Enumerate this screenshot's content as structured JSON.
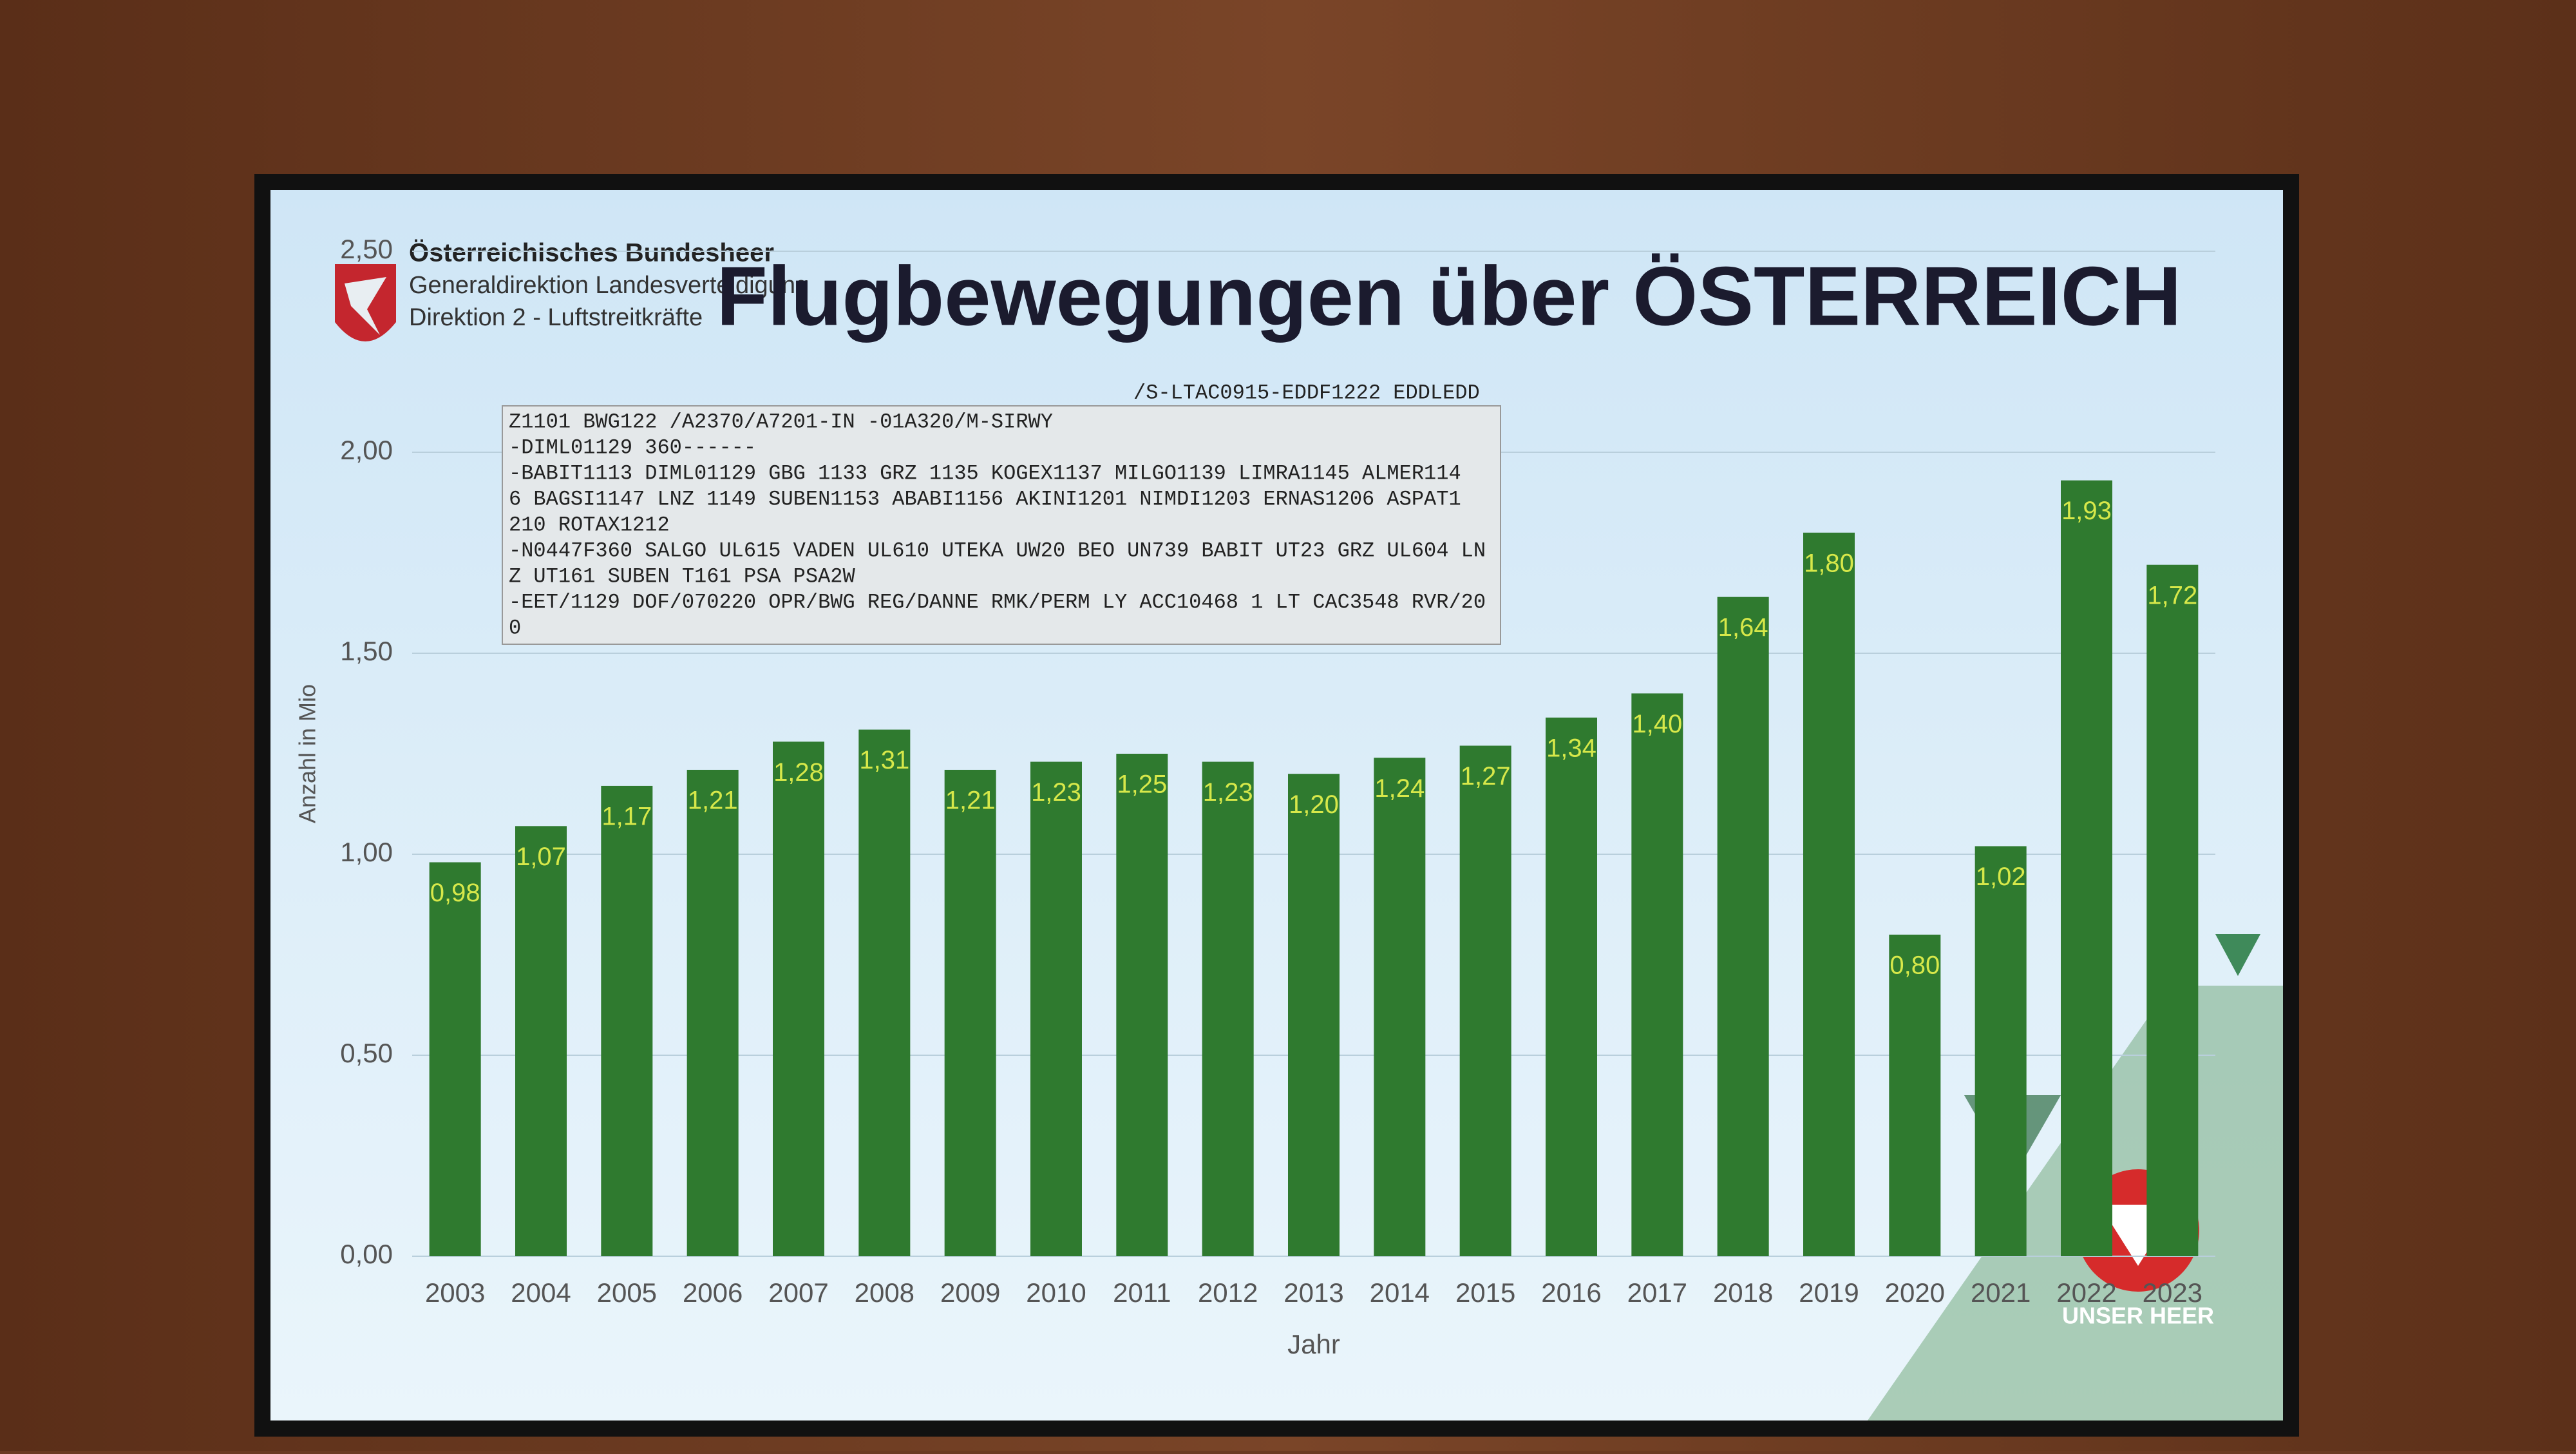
{
  "chart_data": {
    "type": "bar",
    "title": "Flugbewegungen über ÖSTERREICH",
    "x_label": "Jahr",
    "y_label": "Anzahl in Mio",
    "categories": [
      "2003",
      "2004",
      "2005",
      "2006",
      "2007",
      "2008",
      "2009",
      "2010",
      "2011",
      "2012",
      "2013",
      "2014",
      "2015",
      "2016",
      "2017",
      "2018",
      "2019",
      "2020",
      "2021",
      "2022",
      "2023"
    ],
    "values": [
      0.98,
      1.07,
      1.17,
      1.21,
      1.28,
      1.31,
      1.21,
      1.23,
      1.25,
      1.23,
      1.2,
      1.24,
      1.27,
      1.34,
      1.4,
      1.64,
      1.8,
      0.8,
      1.02,
      1.93,
      1.72
    ],
    "value_labels": [
      "0,98",
      "1,07",
      "1,17",
      "1,21",
      "1,28",
      "1,31",
      "1,21",
      "1,23",
      "1,25",
      "1,23",
      "1,20",
      "1,24",
      "1,27",
      "1,34",
      "1,40",
      "1,64",
      "1,80",
      "0,80",
      "1,02",
      "1,93",
      "1,72"
    ],
    "color": "#2f7a2f",
    "label_color": "#d7e84a",
    "ylim": [
      0,
      2.5
    ],
    "yticks": [
      {
        "value": 0,
        "label": "0,00"
      },
      {
        "value": 0.5,
        "label": "0,50"
      },
      {
        "value": 1,
        "label": "1,00"
      },
      {
        "value": 1.5,
        "label": "1,50"
      },
      {
        "value": 2,
        "label": "2,00"
      },
      {
        "value": 2.5,
        "label": "2,50"
      }
    ],
    "grid": true
  },
  "header": {
    "org": "Österreichisches Bundesheer",
    "line2": "Generaldirektion Landesverteidigung",
    "line3": "Direktion 2 - Luftstreitkräfte"
  },
  "flight_plan": {
    "header": "/S-LTAC0915-EDDF1222 EDDLEDD",
    "lines": [
      "Z1101 BWG122 /A2370/A7201-IN -01A320/M-SIRWY",
      "-DIML01129 360------",
      "-BABIT1113 DIML01129 GBG  1133 GRZ  1135 KOGEX1137 MILGO1139 LIMRA1145 ALMER114",
      "6 BAGSI1147 LNZ  1149 SUBEN1153 ABABI1156 AKINI1201 NIMDI1203 ERNAS1206 ASPAT1",
      "210 ROTAX1212",
      "-N0447F360 SALGO UL615 VADEN UL610 UTEKA UW20 BEO UN739 BABIT UT23 GRZ UL604 LN",
      "Z UT161 SUBEN T161 PSA PSA2W",
      "-EET/1129 DOF/070220 OPR/BWG REG/DANNE RMK/PERM LY ACC10468 1 LT CAC3548 RVR/20",
      "0"
    ]
  },
  "footer_logo": "UNSER HEER"
}
